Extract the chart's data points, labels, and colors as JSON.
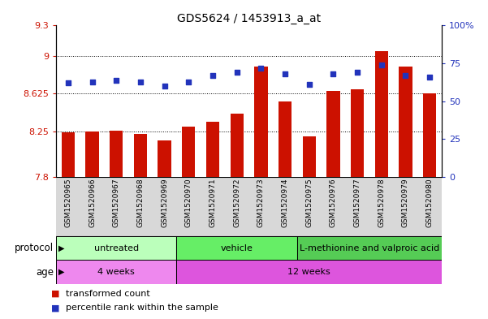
{
  "title": "GDS5624 / 1453913_a_at",
  "samples": [
    "GSM1520965",
    "GSM1520966",
    "GSM1520967",
    "GSM1520968",
    "GSM1520969",
    "GSM1520970",
    "GSM1520971",
    "GSM1520972",
    "GSM1520973",
    "GSM1520974",
    "GSM1520975",
    "GSM1520976",
    "GSM1520977",
    "GSM1520978",
    "GSM1520979",
    "GSM1520980"
  ],
  "transformed_count": [
    8.24,
    8.25,
    8.26,
    8.23,
    8.16,
    8.3,
    8.35,
    8.43,
    8.89,
    8.55,
    8.2,
    8.65,
    8.67,
    9.05,
    8.89,
    8.63
  ],
  "percentile_rank": [
    62,
    63,
    64,
    63,
    60,
    63,
    67,
    69,
    72,
    68,
    61,
    68,
    69,
    74,
    67,
    66
  ],
  "y_min": 7.8,
  "y_max": 9.3,
  "y_ticks": [
    7.8,
    8.25,
    8.625,
    9.0,
    9.3
  ],
  "y_tick_labels": [
    "7.8",
    "8.25",
    "8.625",
    "9",
    "9.3"
  ],
  "right_y_ticks": [
    0,
    25,
    50,
    75,
    100
  ],
  "right_y_tick_labels": [
    "0",
    "25",
    "50",
    "75",
    "100%"
  ],
  "bar_color": "#cc1100",
  "dot_color": "#2233bb",
  "bar_bottom": 7.8,
  "protocol_groups": [
    {
      "label": "untreated",
      "start": 0,
      "end": 4,
      "color": "#bbffbb"
    },
    {
      "label": "vehicle",
      "start": 5,
      "end": 9,
      "color": "#66ee66"
    },
    {
      "label": "L-methionine and valproic acid",
      "start": 10,
      "end": 15,
      "color": "#55cc55"
    }
  ],
  "age_groups": [
    {
      "label": "4 weeks",
      "start": 0,
      "end": 4,
      "color": "#ee88ee"
    },
    {
      "label": "12 weeks",
      "start": 5,
      "end": 15,
      "color": "#dd55dd"
    }
  ],
  "protocol_label": "protocol",
  "age_label": "age",
  "legend1": "transformed count",
  "legend2": "percentile rank within the sample",
  "axis_label_color_left": "#cc1100",
  "axis_label_color_right": "#2233bb",
  "bg_color": "#ffffff"
}
